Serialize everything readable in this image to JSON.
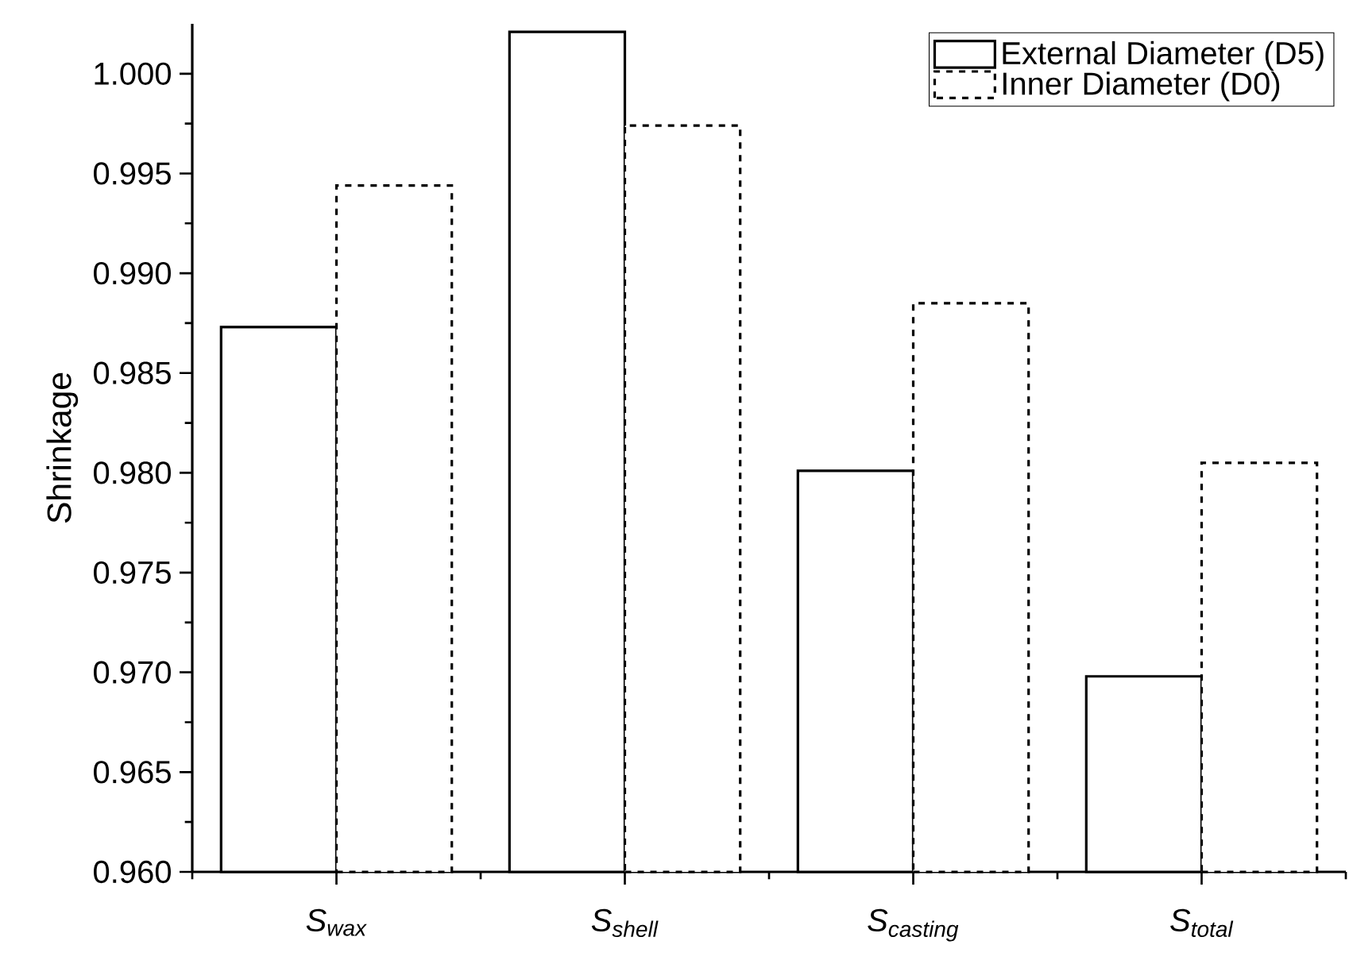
{
  "chart_data": {
    "type": "bar",
    "ylabel": "Shrinkage",
    "categories": [
      "S$_{wax}$",
      "S$_{shell}$",
      "S$_{casting}$",
      "S$_{total}$"
    ],
    "series": [
      {
        "name": "External Diameter (D5)",
        "color": "#000000",
        "values": [
          0.9873,
          1.0021,
          0.9801,
          0.9698
        ]
      },
      {
        "name": "Inner Diameter (D0)",
        "color": "#000000",
        "line_style": "dashed",
        "values": [
          0.9944,
          0.9974,
          0.9885,
          0.9805
        ]
      }
    ],
    "ylim": [
      0.96,
      1.0025
    ],
    "yticks": [
      {
        "value": 0.96,
        "label": "0.960"
      },
      {
        "value": 0.965,
        "label": "0.965"
      },
      {
        "value": 0.97,
        "label": "0.970"
      },
      {
        "value": 0.975,
        "label": "0.975"
      },
      {
        "value": 0.98,
        "label": "0.980"
      },
      {
        "value": 0.985,
        "label": "0.985"
      },
      {
        "value": 0.99,
        "label": "0.990"
      },
      {
        "value": 0.995,
        "label": "0.995"
      },
      {
        "value": 1.0,
        "label": "1.000"
      }
    ],
    "grid": false,
    "legend": "top right"
  }
}
